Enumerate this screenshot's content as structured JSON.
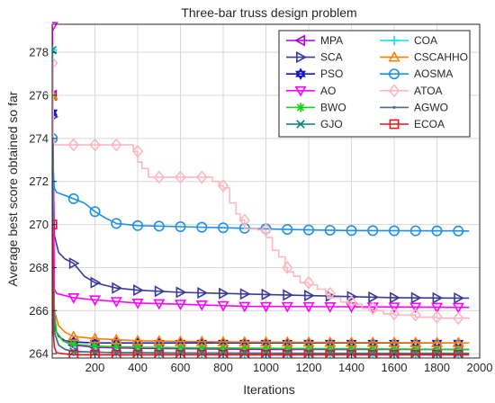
{
  "chart_data": {
    "type": "line",
    "title": "Three-bar truss design problem",
    "xlabel": "Iterations",
    "ylabel": "Average best score obtained so far",
    "xlim": [
      0,
      2000
    ],
    "ylim": [
      263.8,
      279.3
    ],
    "xticks": [
      200,
      400,
      600,
      800,
      1000,
      1200,
      1400,
      1600,
      1800,
      2000
    ],
    "yticks": [
      264,
      266,
      268,
      270,
      272,
      274,
      276,
      278
    ],
    "grid": true,
    "legend_position": "top-right",
    "legend_columns": 2,
    "series": [
      {
        "name": "MPA",
        "color": "#b000d8",
        "marker": "triangle-left",
        "marker_every": 100,
        "points": [
          [
            1,
            276
          ],
          [
            5,
            266.5
          ],
          [
            10,
            265.5
          ],
          [
            20,
            265
          ],
          [
            50,
            264.6
          ],
          [
            100,
            264.4
          ],
          [
            200,
            264.3
          ],
          [
            400,
            264.25
          ],
          [
            1000,
            264.2
          ],
          [
            1950,
            264.2
          ]
        ]
      },
      {
        "name": "SCA",
        "color": "#3a3a9a",
        "marker": "triangle-right",
        "marker_every": 100,
        "points": [
          [
            1,
            275
          ],
          [
            10,
            269.5
          ],
          [
            30,
            268.7
          ],
          [
            60,
            268.4
          ],
          [
            100,
            268.2
          ],
          [
            150,
            267.6
          ],
          [
            200,
            267.3
          ],
          [
            300,
            267.05
          ],
          [
            400,
            266.95
          ],
          [
            600,
            266.85
          ],
          [
            800,
            266.8
          ],
          [
            1000,
            266.75
          ],
          [
            1200,
            266.7
          ],
          [
            1400,
            266.65
          ],
          [
            1600,
            266.6
          ],
          [
            1950,
            266.58
          ]
        ]
      },
      {
        "name": "PSO",
        "color": "#1414c8",
        "marker": "hexagram",
        "marker_every": 100,
        "points": [
          [
            1,
            275.2
          ],
          [
            10,
            265.2
          ],
          [
            30,
            264.8
          ],
          [
            60,
            264.6
          ],
          [
            100,
            264.55
          ],
          [
            200,
            264.5
          ],
          [
            400,
            264.5
          ],
          [
            1950,
            264.5
          ]
        ]
      },
      {
        "name": "AO",
        "color": "#ff00ff",
        "marker": "triangle-down",
        "marker_every": 100,
        "points": [
          [
            1,
            279.2
          ],
          [
            5,
            273
          ],
          [
            10,
            267
          ],
          [
            20,
            266.8
          ],
          [
            100,
            266.6
          ],
          [
            200,
            266.5
          ],
          [
            400,
            266.35
          ],
          [
            600,
            266.3
          ],
          [
            900,
            266.2
          ],
          [
            1400,
            266.18
          ],
          [
            1950,
            266.15
          ]
        ]
      },
      {
        "name": "BWO",
        "color": "#14d214",
        "marker": "asterisk",
        "marker_every": 100,
        "points": [
          [
            1,
            276
          ],
          [
            5,
            268
          ],
          [
            10,
            266
          ],
          [
            20,
            265
          ],
          [
            50,
            264.6
          ],
          [
            100,
            264.45
          ],
          [
            200,
            264.35
          ],
          [
            400,
            264.3
          ],
          [
            1000,
            264.25
          ],
          [
            1950,
            264.2
          ]
        ]
      },
      {
        "name": "GJO",
        "color": "#008080",
        "marker": "x",
        "marker_every": 100,
        "points": [
          [
            1,
            278.1
          ],
          [
            5,
            268
          ],
          [
            10,
            265
          ],
          [
            30,
            264.4
          ],
          [
            60,
            264.2
          ],
          [
            100,
            264.1
          ],
          [
            300,
            264.05
          ],
          [
            1000,
            264.02
          ],
          [
            1950,
            264
          ]
        ]
      },
      {
        "name": "COA",
        "color": "#00e5ee",
        "marker": "plus",
        "marker_every": 100,
        "points": [
          [
            1,
            278.1
          ],
          [
            5,
            267
          ],
          [
            10,
            265
          ],
          [
            30,
            264.4
          ],
          [
            60,
            264.2
          ],
          [
            100,
            264.1
          ],
          [
            300,
            264.05
          ],
          [
            1000,
            264.02
          ],
          [
            1950,
            264.02
          ]
        ]
      },
      {
        "name": "CSCAHHO",
        "color": "#ff7f00",
        "marker": "triangle-up",
        "marker_every": 100,
        "points": [
          [
            1,
            276
          ],
          [
            5,
            268
          ],
          [
            10,
            266
          ],
          [
            30,
            265.3
          ],
          [
            60,
            265
          ],
          [
            100,
            264.8
          ],
          [
            200,
            264.7
          ],
          [
            400,
            264.6
          ],
          [
            800,
            264.55
          ],
          [
            1950,
            264.5
          ]
        ]
      },
      {
        "name": "AOSMA",
        "color": "#1e90e6",
        "marker": "circle",
        "marker_every": 100,
        "points": [
          [
            1,
            274
          ],
          [
            5,
            272.5
          ],
          [
            10,
            271.7
          ],
          [
            20,
            271.5
          ],
          [
            100,
            271.2
          ],
          [
            150,
            271
          ],
          [
            200,
            270.6
          ],
          [
            250,
            270.3
          ],
          [
            300,
            270.05
          ],
          [
            400,
            269.95
          ],
          [
            600,
            269.9
          ],
          [
            800,
            269.85
          ],
          [
            1000,
            269.8
          ],
          [
            1200,
            269.75
          ],
          [
            1400,
            269.72
          ],
          [
            1950,
            269.7
          ]
        ]
      },
      {
        "name": "ATOA",
        "color": "#ffb6c1",
        "marker": "diamond",
        "marker_every": 100,
        "step": true,
        "points": [
          [
            1,
            277.5
          ],
          [
            5,
            274
          ],
          [
            10,
            273.7
          ],
          [
            340,
            273.7
          ],
          [
            380,
            273.4
          ],
          [
            400,
            272.9
          ],
          [
            420,
            272.6
          ],
          [
            450,
            272.2
          ],
          [
            700,
            272.2
          ],
          [
            750,
            272
          ],
          [
            780,
            271.8
          ],
          [
            800,
            271.7
          ],
          [
            830,
            271
          ],
          [
            860,
            270.5
          ],
          [
            880,
            270.2
          ],
          [
            900,
            269.8
          ],
          [
            930,
            269.8
          ],
          [
            960,
            269.75
          ],
          [
            1000,
            269.4
          ],
          [
            1030,
            268.8
          ],
          [
            1060,
            268.5
          ],
          [
            1090,
            268
          ],
          [
            1100,
            267.8
          ],
          [
            1130,
            267.6
          ],
          [
            1160,
            267.3
          ],
          [
            1200,
            267.2
          ],
          [
            1240,
            267
          ],
          [
            1280,
            266.8
          ],
          [
            1300,
            266.6
          ],
          [
            1350,
            266.4
          ],
          [
            1400,
            266.3
          ],
          [
            1450,
            266.1
          ],
          [
            1500,
            266
          ],
          [
            1550,
            265.85
          ],
          [
            1600,
            265.8
          ],
          [
            1700,
            265.7
          ],
          [
            1800,
            265.65
          ],
          [
            1950,
            265.6
          ]
        ]
      },
      {
        "name": "AGWO",
        "color": "#4f6d8a",
        "marker": "dot",
        "marker_every": 100,
        "points": [
          [
            1,
            273.7
          ],
          [
            5,
            268
          ],
          [
            10,
            265
          ],
          [
            30,
            264.4
          ],
          [
            60,
            264.2
          ],
          [
            100,
            264.1
          ],
          [
            300,
            264.05
          ],
          [
            1000,
            264.02
          ],
          [
            1950,
            264.01
          ]
        ]
      },
      {
        "name": "ECOA",
        "color": "#e8141e",
        "marker": "square",
        "marker_every": 100,
        "points": [
          [
            1,
            270
          ],
          [
            3,
            266
          ],
          [
            5,
            265
          ],
          [
            10,
            264.3
          ],
          [
            20,
            264.05
          ],
          [
            50,
            264
          ],
          [
            100,
            263.95
          ],
          [
            1950,
            263.95
          ]
        ]
      }
    ]
  }
}
